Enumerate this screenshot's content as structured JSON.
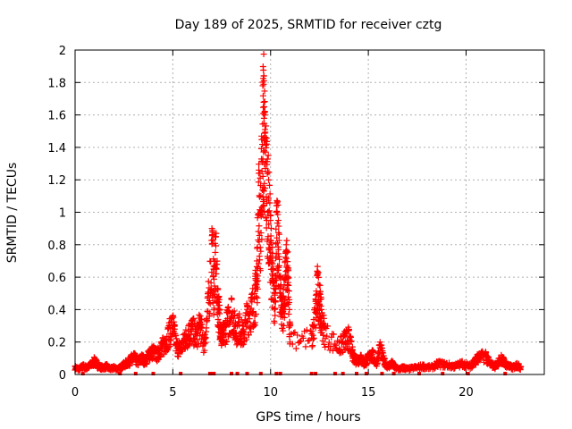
{
  "chart_data": {
    "type": "scatter",
    "title": "Day 189 of 2025, SRMTID for receiver cztg",
    "xlabel": "GPS time / hours",
    "ylabel": "SRMTID / TECUs",
    "xlim": [
      0,
      24
    ],
    "ylim": [
      0,
      2
    ],
    "xticks": [
      0,
      5,
      10,
      15,
      20
    ],
    "xtick_labels": [
      "0",
      "5",
      "10",
      "15",
      "20"
    ],
    "yticks": [
      0,
      0.2,
      0.4,
      0.6,
      0.8,
      1,
      1.2,
      1.4,
      1.6,
      1.8,
      2
    ],
    "ytick_labels": [
      "0",
      "0.2",
      "0.4",
      "0.6",
      "0.8",
      "1",
      "1.2",
      "1.4",
      "1.6",
      "1.8",
      "2"
    ],
    "grid": true,
    "marker": "plus",
    "color": "#ff0000",
    "series": [
      {
        "name": "SRMTID",
        "points": [
          [
            0.0,
            0.05
          ],
          [
            0.2,
            0.04
          ],
          [
            0.4,
            0.06
          ],
          [
            0.6,
            0.05
          ],
          [
            0.8,
            0.07
          ],
          [
            1.0,
            0.1
          ],
          [
            1.2,
            0.06
          ],
          [
            1.4,
            0.05
          ],
          [
            1.6,
            0.06
          ],
          [
            1.8,
            0.04
          ],
          [
            2.0,
            0.05
          ],
          [
            2.2,
            0.04
          ],
          [
            2.4,
            0.06
          ],
          [
            2.6,
            0.08
          ],
          [
            2.8,
            0.1
          ],
          [
            3.0,
            0.13
          ],
          [
            3.2,
            0.09
          ],
          [
            3.4,
            0.12
          ],
          [
            3.6,
            0.1
          ],
          [
            3.8,
            0.15
          ],
          [
            4.0,
            0.17
          ],
          [
            4.2,
            0.14
          ],
          [
            4.4,
            0.2
          ],
          [
            4.6,
            0.22
          ],
          [
            4.8,
            0.3
          ],
          [
            5.0,
            0.36
          ],
          [
            5.2,
            0.2
          ],
          [
            5.4,
            0.19
          ],
          [
            5.6,
            0.25
          ],
          [
            5.8,
            0.3
          ],
          [
            6.0,
            0.33
          ],
          [
            6.2,
            0.28
          ],
          [
            6.4,
            0.36
          ],
          [
            6.6,
            0.22
          ],
          [
            6.8,
            0.48
          ],
          [
            7.0,
            0.9
          ],
          [
            7.1,
            0.65
          ],
          [
            7.2,
            0.85
          ],
          [
            7.3,
            0.53
          ],
          [
            7.4,
            0.4
          ],
          [
            7.5,
            0.26
          ],
          [
            7.6,
            0.3
          ],
          [
            7.8,
            0.38
          ],
          [
            8.0,
            0.47
          ],
          [
            8.2,
            0.32
          ],
          [
            8.4,
            0.35
          ],
          [
            8.6,
            0.28
          ],
          [
            8.8,
            0.42
          ],
          [
            9.0,
            0.47
          ],
          [
            9.2,
            0.55
          ],
          [
            9.3,
            0.7
          ],
          [
            9.4,
            1.26
          ],
          [
            9.5,
            1.1
          ],
          [
            9.6,
            1.78
          ],
          [
            9.65,
            1.84
          ],
          [
            9.7,
            1.6
          ],
          [
            9.8,
            1.42
          ],
          [
            9.9,
            1.2
          ],
          [
            10.0,
            0.95
          ],
          [
            10.1,
            0.7
          ],
          [
            10.2,
            0.5
          ],
          [
            10.3,
            1.0
          ],
          [
            10.4,
            0.95
          ],
          [
            10.5,
            0.6
          ],
          [
            10.6,
            0.45
          ],
          [
            10.7,
            0.55
          ],
          [
            10.8,
            0.8
          ],
          [
            10.9,
            0.65
          ],
          [
            11.0,
            0.3
          ],
          [
            12.1,
            0.25
          ],
          [
            12.3,
            0.45
          ],
          [
            12.4,
            0.62
          ],
          [
            12.5,
            0.55
          ],
          [
            12.6,
            0.4
          ],
          [
            12.8,
            0.3
          ],
          [
            13.5,
            0.2
          ],
          [
            13.8,
            0.25
          ],
          [
            14.0,
            0.27
          ],
          [
            14.2,
            0.15
          ],
          [
            14.4,
            0.1
          ],
          [
            14.6,
            0.12
          ],
          [
            14.8,
            0.08
          ],
          [
            15.0,
            0.12
          ],
          [
            15.2,
            0.15
          ],
          [
            15.4,
            0.08
          ],
          [
            15.6,
            0.2
          ],
          [
            15.8,
            0.1
          ],
          [
            16.0,
            0.06
          ],
          [
            16.2,
            0.08
          ],
          [
            16.4,
            0.05
          ],
          [
            16.6,
            0.04
          ],
          [
            16.8,
            0.05
          ],
          [
            17.0,
            0.04
          ],
          [
            17.4,
            0.05
          ],
          [
            17.8,
            0.06
          ],
          [
            18.2,
            0.05
          ],
          [
            18.6,
            0.08
          ],
          [
            19.0,
            0.07
          ],
          [
            19.4,
            0.06
          ],
          [
            19.8,
            0.08
          ],
          [
            20.2,
            0.06
          ],
          [
            20.4,
            0.09
          ],
          [
            20.6,
            0.12
          ],
          [
            21.0,
            0.14
          ],
          [
            21.2,
            0.08
          ],
          [
            21.5,
            0.06
          ],
          [
            21.8,
            0.12
          ],
          [
            22.0,
            0.08
          ],
          [
            22.2,
            0.06
          ],
          [
            22.4,
            0.05
          ],
          [
            22.6,
            0.07
          ],
          [
            22.8,
            0.05
          ]
        ]
      }
    ],
    "baseline_markers_x": [
      0.4,
      2.3,
      3.1,
      4.0,
      5.4,
      6.9,
      7.0,
      7.1,
      8.0,
      8.3,
      8.8,
      9.5,
      10.3,
      10.5,
      12.1,
      12.3,
      13.3,
      13.7,
      14.4,
      14.9,
      15.7,
      16.3,
      17.6,
      18.8,
      20.1,
      22.0
    ]
  }
}
